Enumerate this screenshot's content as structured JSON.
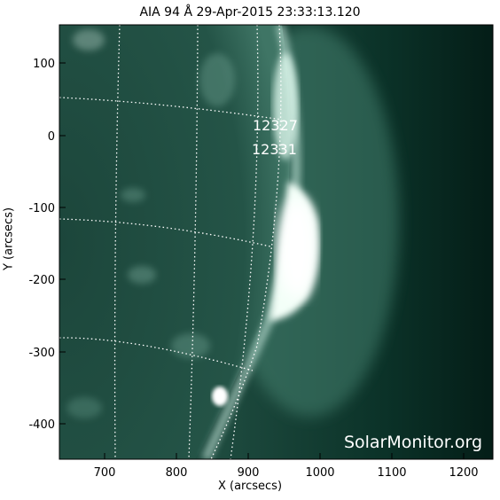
{
  "title": "AIA 94 Å 29-Apr-2015 23:33:13.120",
  "axes": {
    "xlabel": "X (arcsecs)",
    "ylabel": "Y (arcsecs)",
    "x_ticks": [
      "700",
      "800",
      "900",
      "1000",
      "1100",
      "1200"
    ],
    "y_ticks": [
      "100",
      "0",
      "-100",
      "-200",
      "-300",
      "-400"
    ]
  },
  "regions": [
    {
      "label": "12327"
    },
    {
      "label": "12331"
    }
  ],
  "watermark": "SolarMonitor.org",
  "colors": {
    "disk": "#1f4a3f",
    "corona_dark": "#062a21",
    "limb_glow": "#f2fff7",
    "grid": "#ffffff"
  }
}
